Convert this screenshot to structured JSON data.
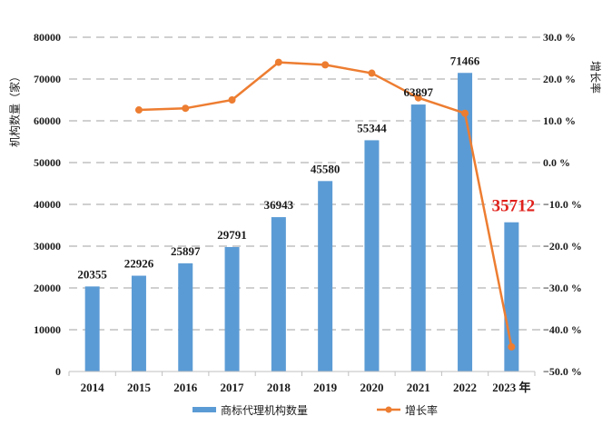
{
  "chart_data": {
    "type": "bar+line",
    "categories": [
      "2014",
      "2015",
      "2016",
      "2017",
      "2018",
      "2019",
      "2020",
      "2021",
      "2022",
      "2023 年"
    ],
    "series": [
      {
        "name": "商标代理机构数量",
        "type": "bar",
        "axis": "left",
        "color": "#5b9bd5",
        "values": [
          20355,
          22926,
          25897,
          29791,
          36943,
          45580,
          55344,
          63897,
          71466,
          35712
        ],
        "labels": [
          "20355",
          "22926",
          "25897",
          "29791",
          "36943",
          "45580",
          "55344",
          "63897",
          "71466",
          "35712"
        ],
        "highlight_index": 9,
        "highlight_color": "#e0201b"
      },
      {
        "name": "增长率",
        "type": "line",
        "axis": "right",
        "color": "#ed7d31",
        "values": [
          null,
          12.6,
          13.0,
          15.0,
          24.0,
          23.4,
          21.4,
          15.5,
          11.8,
          -44.1
        ]
      }
    ],
    "left_axis": {
      "label": "机构数量（家）",
      "range": [
        0,
        80000
      ],
      "ticks": [
        "0",
        "10000",
        "20000",
        "30000",
        "40000",
        "50000",
        "60000",
        "70000",
        "80000"
      ]
    },
    "right_axis": {
      "label": "增长率",
      "range": [
        -50,
        30
      ],
      "ticks": [
        "−50.0 %",
        "−40.0 %",
        "−30.0 %",
        "−20.0 %",
        "−10.0 %",
        "0.0 %",
        "10.0 %",
        "20.0 %",
        "30.0 %"
      ]
    },
    "grid": true,
    "legend_position": "bottom"
  }
}
